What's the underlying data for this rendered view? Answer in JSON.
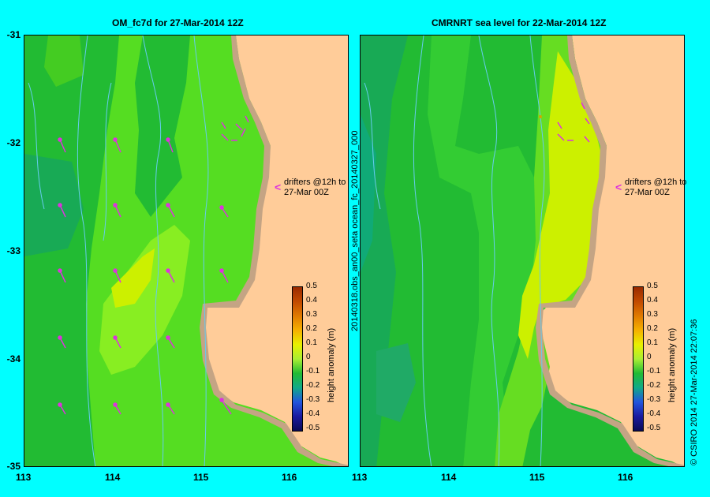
{
  "panels": [
    {
      "title": "OM_fc7d for 27-Mar-2014 12Z"
    },
    {
      "title": "CMRNRT sea level  for 22-Mar-2014 12Z"
    }
  ],
  "y_axis": {
    "ticks": [
      "-31",
      "-32",
      "-33",
      "-34",
      "-35"
    ]
  },
  "x_axis": {
    "ticks": [
      "113",
      "114",
      "115",
      "116"
    ]
  },
  "drifters": {
    "line1": "drifters @12h to",
    "line2": "27-Mar 00Z"
  },
  "colorbar": {
    "label": "height anomaly (m)",
    "ticks": [
      "0.5",
      "0.4",
      "0.3",
      "0.2",
      "0.1",
      "0",
      "-0.1",
      "-0.2",
      "-0.3",
      "-0.4",
      "-0.5"
    ],
    "colors": [
      "#9a2a00",
      "#c24a00",
      "#e07a00",
      "#f5b000",
      "#e8f000",
      "#aaee33",
      "#22bb33",
      "#10aa88",
      "#2255dd",
      "#1a1aa0",
      "#0a0a55"
    ]
  },
  "side_labels": {
    "left_vertical": "20140318.obs_an00_seta      ocean_fc_20140327_000",
    "right_vertical": "© CSIRO 2014   27-Mar-2014 22:07:36"
  },
  "colors": {
    "background": "#00ffff",
    "land": "#ffcc99",
    "coast": "#c4a484",
    "drifter": "#dd33dd",
    "river": "#66ccee"
  }
}
